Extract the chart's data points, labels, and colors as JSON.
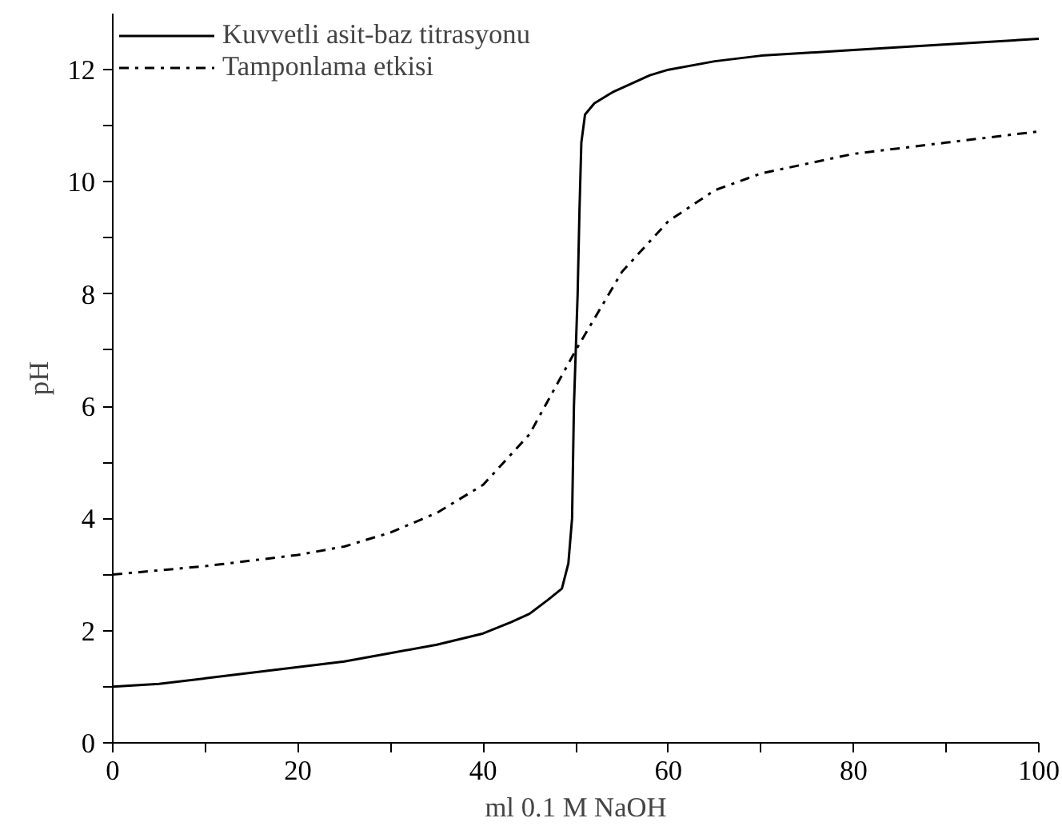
{
  "chart_data": {
    "type": "line",
    "xlabel": "ml 0.1 M NaOH",
    "ylabel": "pH",
    "xlim": [
      0,
      100
    ],
    "ylim": [
      0,
      13
    ],
    "xticks": [
      0,
      {
        "value": 10,
        "label": null
      },
      20,
      {
        "value": 30,
        "label": null
      },
      40,
      {
        "value": 50,
        "label": null
      },
      60,
      {
        "value": 70,
        "label": null
      },
      80,
      {
        "value": 90,
        "label": null
      },
      100
    ],
    "yticks": [
      0,
      {
        "value": 1,
        "label": null
      },
      2,
      {
        "value": 3,
        "label": null
      },
      4,
      {
        "value": 5,
        "label": null
      },
      6,
      {
        "value": 7,
        "label": null
      },
      8,
      {
        "value": 9,
        "label": null
      },
      10,
      {
        "value": 11,
        "label": null
      },
      12
    ],
    "grid": false,
    "legend": "top left",
    "marker": "none",
    "series": [
      {
        "name": "Kuvvetli asit-baz titrasyonu",
        "color": "#000000",
        "line_style": "solid",
        "x": [
          0,
          5,
          10,
          20,
          25,
          30,
          35,
          40,
          43,
          45,
          47,
          48.5,
          49.2,
          49.6,
          49.8,
          50,
          50.2,
          50.4,
          50.6,
          51,
          52,
          54,
          56,
          58,
          60,
          65,
          70,
          80,
          90,
          100
        ],
        "values": [
          1.0,
          1.05,
          1.15,
          1.35,
          1.45,
          1.6,
          1.75,
          1.95,
          2.15,
          2.3,
          2.55,
          2.75,
          3.2,
          4,
          6,
          7,
          8,
          9.5,
          10.7,
          11.2,
          11.4,
          11.6,
          11.75,
          11.9,
          12.0,
          12.15,
          12.25,
          12.35,
          12.45,
          12.55
        ]
      },
      {
        "name": "Tamponlama etkisi",
        "color": "#000000",
        "line_style": "dashdot",
        "x": [
          0,
          10,
          20,
          25,
          30,
          35,
          40,
          45,
          50,
          55,
          60,
          65,
          70,
          80,
          90,
          100
        ],
        "values": [
          3.0,
          3.15,
          3.35,
          3.5,
          3.75,
          4.1,
          4.6,
          5.5,
          7.0,
          8.4,
          9.3,
          9.85,
          10.15,
          10.5,
          10.7,
          10.9
        ]
      }
    ]
  }
}
